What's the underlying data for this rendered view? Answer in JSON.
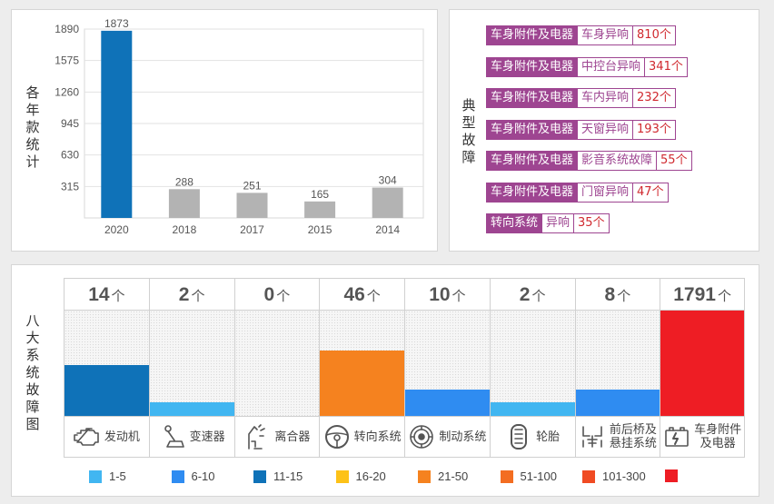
{
  "year_panel": {
    "vertical_label": "各年款统计",
    "chart_data": {
      "type": "bar",
      "categories": [
        "2020",
        "2018",
        "2017",
        "2015",
        "2014"
      ],
      "values": [
        1873,
        288,
        251,
        165,
        304
      ],
      "colors": [
        "#0f72b8",
        "#b3b3b3",
        "#b3b3b3",
        "#b3b3b3",
        "#b3b3b3"
      ],
      "yticks": [
        315,
        630,
        945,
        1260,
        1575,
        1890
      ],
      "ylim": [
        0,
        1890
      ],
      "grid": true,
      "legend": "none"
    }
  },
  "faults_panel": {
    "vertical_label": "典型故障",
    "items": [
      {
        "category": "车身附件及电器",
        "sub": "车身异响",
        "count": "810个"
      },
      {
        "category": "车身附件及电器",
        "sub": "中控台异响",
        "count": "341个"
      },
      {
        "category": "车身附件及电器",
        "sub": "车内异响",
        "count": "232个"
      },
      {
        "category": "车身附件及电器",
        "sub": "天窗异响",
        "count": "193个"
      },
      {
        "category": "车身附件及电器",
        "sub": "影音系统故障",
        "count": "55个"
      },
      {
        "category": "车身附件及电器",
        "sub": "门窗异响",
        "count": "47个"
      },
      {
        "category": "转向系统",
        "sub": "异响",
        "count": "35个"
      }
    ]
  },
  "systems_panel": {
    "vertical_label": "八大系统故障图",
    "unit": "个",
    "systems": [
      {
        "name": "发动机",
        "count": 14,
        "level": 0.48,
        "color": "#0f72b8",
        "icon": "engine-icon"
      },
      {
        "name": "变速器",
        "count": 2,
        "level": 0.13,
        "color": "#41b6f1",
        "icon": "gear-shift-icon"
      },
      {
        "name": "离合器",
        "count": 0,
        "level": 0,
        "color": "#41b6f1",
        "icon": "clutch-pedal-icon"
      },
      {
        "name": "转向系统",
        "count": 46,
        "level": 0.62,
        "color": "#f5821f",
        "icon": "steering-wheel-icon"
      },
      {
        "name": "制动系统",
        "count": 10,
        "level": 0.25,
        "color": "#2f8cf1",
        "icon": "brake-disc-icon"
      },
      {
        "name": "轮胎",
        "count": 2,
        "level": 0.13,
        "color": "#41b6f1",
        "icon": "tire-icon"
      },
      {
        "name": "前后桥及悬挂系统",
        "name_lines": [
          "前后桥及",
          "悬挂系统"
        ],
        "count": 8,
        "level": 0.25,
        "color": "#2f8cf1",
        "icon": "suspension-icon"
      },
      {
        "name": "车身附件及电器",
        "name_lines": [
          "车身附件",
          "及电器"
        ],
        "count": 1791,
        "level": 1.0,
        "color": "#ee1d24",
        "icon": "car-battery-icon"
      }
    ],
    "legend": [
      {
        "label": "1-5",
        "color": "#41b6f1"
      },
      {
        "label": "6-10",
        "color": "#2f8cf1"
      },
      {
        "label": "11-15",
        "color": "#0f72b8"
      },
      {
        "label": "16-20",
        "color": "#fdc218"
      },
      {
        "label": "21-50",
        "color": "#f5821f"
      },
      {
        "label": "51-100",
        "color": "#f36d21"
      },
      {
        "label": "101-300",
        "color": "#f04b23"
      },
      {
        "label": "",
        "color": "#ee1d24"
      }
    ]
  }
}
